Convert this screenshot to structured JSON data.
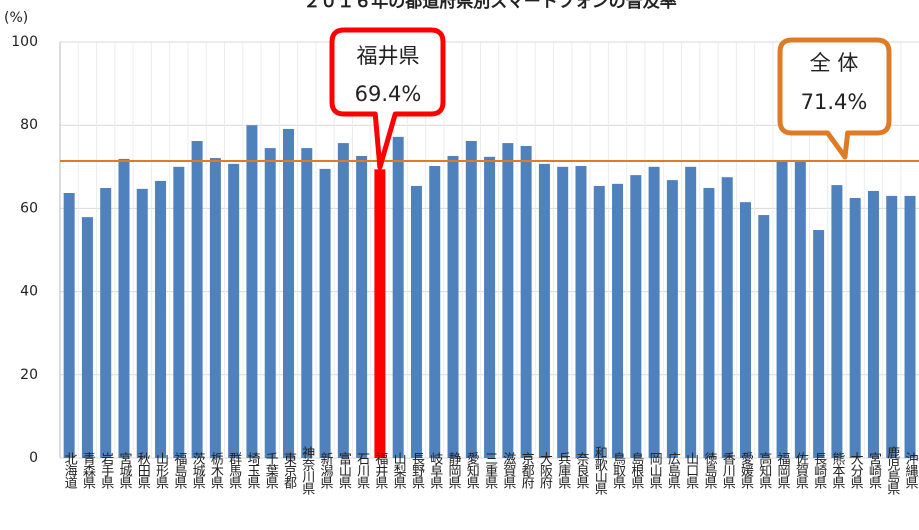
{
  "chart_data": {
    "type": "bar",
    "title": "２０１６年の都道府県別スマートフォンの普及率",
    "y_label": "(%)",
    "categories": [
      "北海道",
      "青森県",
      "岩手県",
      "宮城県",
      "秋田県",
      "山形県",
      "福島県",
      "茨城県",
      "栃木県",
      "群馬県",
      "埼玉県",
      "千葉県",
      "東京都",
      "神奈川県",
      "新潟県",
      "富山県",
      "石川県",
      "福井県",
      "山梨県",
      "長野県",
      "岐阜県",
      "静岡県",
      "愛知県",
      "三重県",
      "滋賀県",
      "京都府",
      "大阪府",
      "兵庫県",
      "奈良県",
      "和歌山県",
      "鳥取県",
      "島根県",
      "岡山県",
      "広島県",
      "山口県",
      "徳島県",
      "香川県",
      "愛媛県",
      "高知県",
      "福岡県",
      "佐賀県",
      "長崎県",
      "熊本県",
      "大分県",
      "宮崎県",
      "鹿児島県",
      "沖縄県"
    ],
    "values": [
      63.7,
      57.9,
      64.9,
      71.9,
      64.7,
      66.6,
      70.0,
      76.2,
      72.1,
      70.7,
      80.0,
      74.5,
      79.1,
      74.5,
      69.5,
      75.7,
      72.6,
      69.4,
      77.2,
      65.4,
      70.2,
      72.6,
      76.2,
      72.4,
      75.7,
      75.0,
      70.7,
      70.0,
      70.2,
      65.4,
      65.9,
      68.0,
      70.0,
      66.8,
      70.0,
      64.9,
      67.5,
      61.5,
      58.4,
      71.2,
      71.4,
      54.8,
      65.6,
      62.5,
      64.2,
      63.0,
      63.0
    ],
    "value_labels": [
      null,
      null,
      null,
      null,
      null,
      null,
      null,
      null,
      null,
      null,
      null,
      null,
      null,
      null,
      null,
      null,
      null,
      "69.4%",
      null,
      null,
      null,
      null,
      null,
      null,
      null,
      null,
      null,
      null,
      null,
      null,
      null,
      null,
      null,
      null,
      null,
      null,
      null,
      null,
      null,
      null,
      null,
      null,
      null,
      null,
      null,
      null,
      null
    ],
    "color": "#4f81bd",
    "highlight_color": "#ff0000",
    "reference_line": {
      "label": "全 体",
      "value": 71.4,
      "value_label": "71.4%",
      "color": "#e07b25"
    },
    "ylim": [
      0,
      100
    ],
    "yticks": [
      0,
      20,
      40,
      60,
      80,
      100
    ],
    "grid": true
  }
}
